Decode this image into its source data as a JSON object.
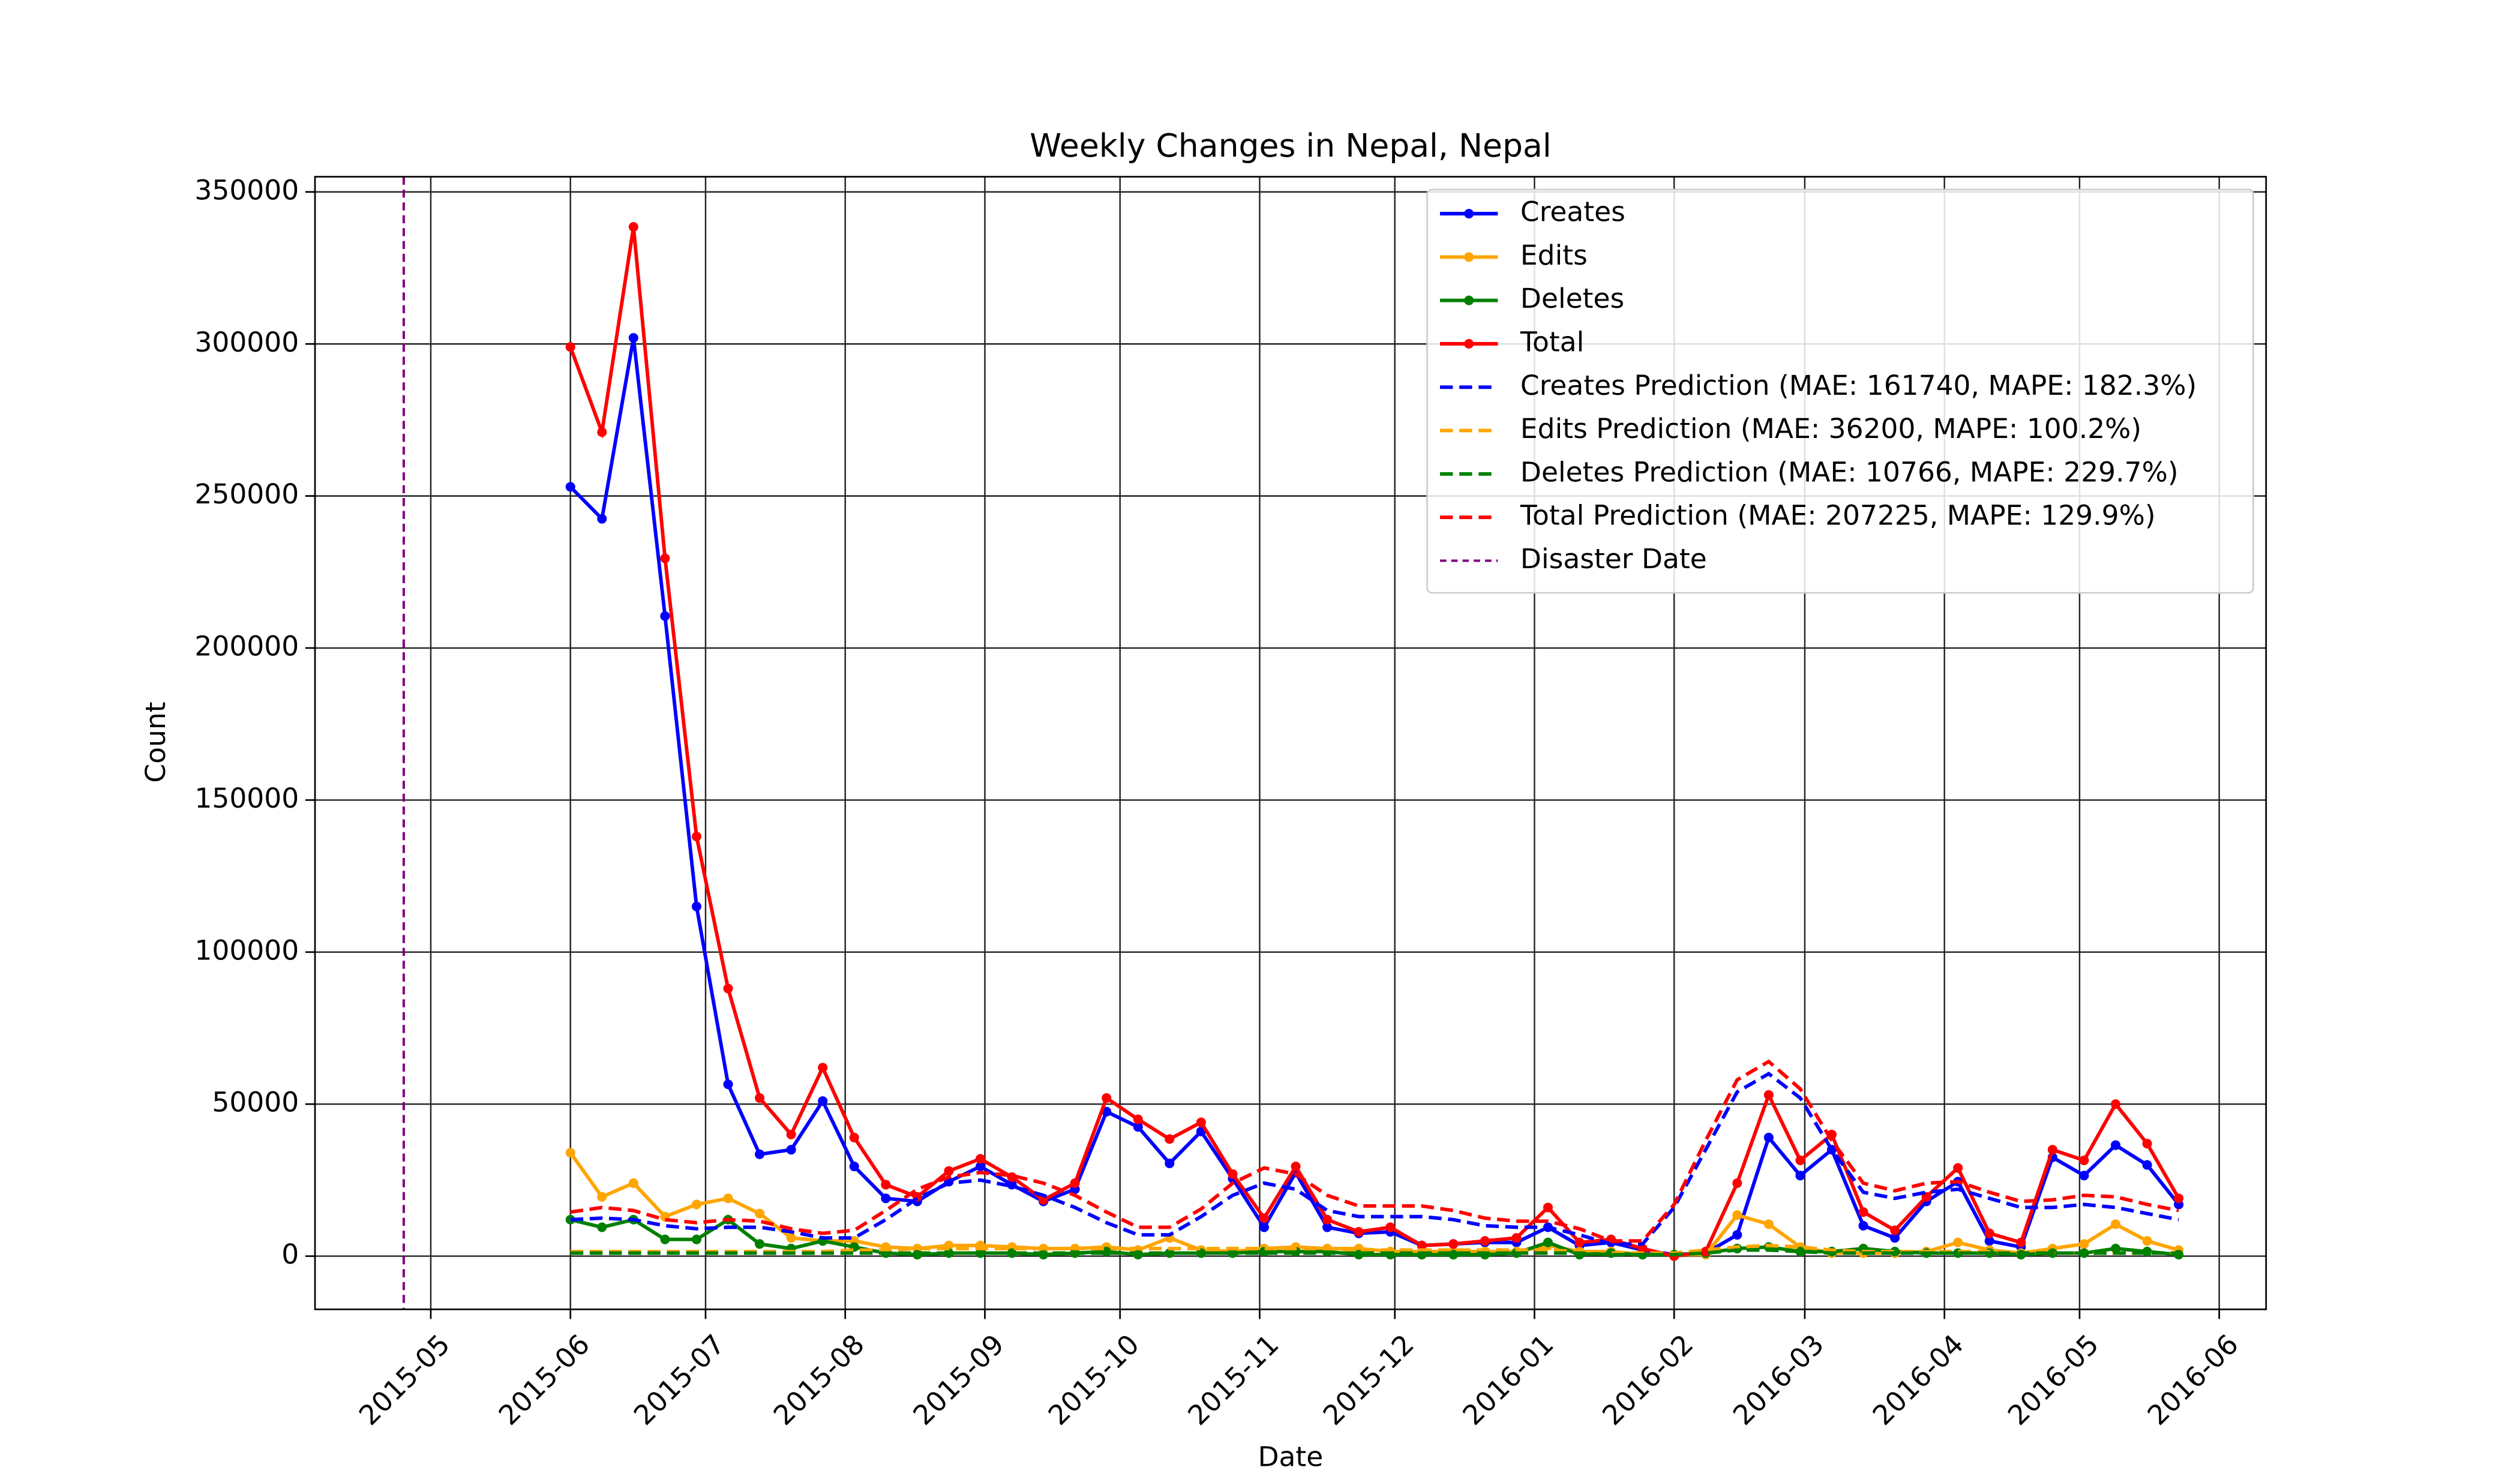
{
  "chart_data": {
    "type": "line",
    "title": "Weekly Changes in Nepal, Nepal",
    "xlabel": "Date",
    "ylabel": "Count",
    "x": [
      0,
      7,
      14,
      21,
      28,
      35,
      42,
      49,
      56,
      63,
      70,
      77,
      84,
      91,
      98,
      105,
      112,
      119,
      126,
      133,
      140,
      147,
      154,
      161,
      168,
      175,
      182,
      189,
      196,
      203,
      210,
      217,
      224,
      231,
      238,
      245,
      252,
      259,
      266,
      273,
      280,
      287,
      294,
      301,
      308,
      315,
      322,
      329,
      336,
      343,
      350,
      357
    ],
    "xlim": [
      -56.7,
      376.4
    ],
    "xticks": [
      {
        "value": -31,
        "label": "2015-05"
      },
      {
        "value": 0,
        "label": "2015-06"
      },
      {
        "value": 30,
        "label": "2015-07"
      },
      {
        "value": 61,
        "label": "2015-08"
      },
      {
        "value": 92,
        "label": "2015-09"
      },
      {
        "value": 122,
        "label": "2015-10"
      },
      {
        "value": 153,
        "label": "2015-11"
      },
      {
        "value": 183,
        "label": "2015-12"
      },
      {
        "value": 214,
        "label": "2016-01"
      },
      {
        "value": 245,
        "label": "2016-02"
      },
      {
        "value": 274,
        "label": "2016-03"
      },
      {
        "value": 305,
        "label": "2016-04"
      },
      {
        "value": 335,
        "label": "2016-05"
      },
      {
        "value": 366,
        "label": "2016-06"
      }
    ],
    "ylim": [
      -17500,
      355000
    ],
    "yticks": [
      0,
      50000,
      100000,
      150000,
      200000,
      250000,
      300000,
      350000
    ],
    "grid": true,
    "legend": "upper right",
    "series": [
      {
        "name": "Creates",
        "color": "blue",
        "linestyle": "solid",
        "marker": true,
        "values": [
          253000,
          242500,
          302000,
          210500,
          115000,
          56500,
          33500,
          35000,
          51000,
          29500,
          19000,
          18000,
          24500,
          29500,
          23500,
          18000,
          22000,
          47500,
          42500,
          30500,
          41000,
          25500,
          9500,
          27500,
          9500,
          7500,
          8000,
          3500,
          4000,
          4500,
          4500,
          9500,
          3500,
          4500,
          2000,
          500,
          1000,
          7000,
          39000,
          26500,
          35000,
          10000,
          6000,
          18000,
          24500,
          5000,
          3000,
          32500,
          26500,
          36500,
          30000,
          17000
        ]
      },
      {
        "name": "Edits",
        "color": "orange",
        "linestyle": "solid",
        "marker": true,
        "values": [
          34000,
          19500,
          24000,
          13000,
          17000,
          19000,
          14000,
          6000,
          5000,
          5000,
          3000,
          2500,
          3500,
          3500,
          3000,
          2500,
          2500,
          3000,
          2000,
          6000,
          2000,
          1500,
          2500,
          3000,
          2500,
          2500,
          1500,
          1500,
          1500,
          1500,
          1500,
          3500,
          1500,
          1500,
          500,
          500,
          500,
          13500,
          10500,
          3000,
          1000,
          1000,
          1000,
          1500,
          4500,
          2000,
          1000,
          2500,
          4000,
          10500,
          5000,
          2000
        ]
      },
      {
        "name": "Deletes",
        "color": "green",
        "linestyle": "solid",
        "marker": true,
        "values": [
          12000,
          9500,
          12000,
          5500,
          5500,
          12000,
          4000,
          2500,
          5000,
          3000,
          1000,
          500,
          1000,
          1000,
          1000,
          500,
          1000,
          1500,
          500,
          1000,
          1000,
          1000,
          1500,
          1500,
          1500,
          500,
          500,
          500,
          500,
          500,
          1000,
          4500,
          500,
          1000,
          500,
          500,
          1000,
          2500,
          3000,
          1500,
          1500,
          2500,
          1500,
          1000,
          1000,
          1000,
          500,
          1000,
          1000,
          2500,
          1500,
          500
        ]
      },
      {
        "name": "Total",
        "color": "red",
        "linestyle": "solid",
        "marker": true,
        "values": [
          299000,
          271000,
          338500,
          229500,
          138000,
          88000,
          52000,
          40000,
          62000,
          39000,
          23500,
          19500,
          28000,
          32000,
          26000,
          18500,
          24000,
          52000,
          45000,
          38500,
          44000,
          27000,
          12500,
          29500,
          12000,
          8000,
          9500,
          3500,
          4000,
          5000,
          6000,
          16000,
          4500,
          5500,
          2500,
          0,
          1500,
          24000,
          53000,
          31500,
          40000,
          14500,
          8500,
          19500,
          29000,
          7500,
          4500,
          35000,
          31500,
          50000,
          37000,
          19000
        ]
      },
      {
        "name": "Creates Prediction (MAE: 161740, MAPE: 182.3%)",
        "color": "blue",
        "linestyle": "dashed",
        "marker": false,
        "values": [
          12000,
          12500,
          12000,
          10000,
          9000,
          9500,
          9500,
          8000,
          6000,
          6000,
          12000,
          19000,
          24000,
          25000,
          23000,
          20000,
          16000,
          11000,
          7000,
          7000,
          13000,
          20000,
          24000,
          22000,
          15000,
          13000,
          13000,
          13000,
          12000,
          10000,
          9500,
          9500,
          7000,
          4000,
          4000,
          16000,
          35000,
          54000,
          60000,
          52000,
          35000,
          21000,
          19000,
          21000,
          22000,
          19000,
          16000,
          16000,
          17000,
          16000,
          14000,
          12000
        ]
      },
      {
        "name": "Edits Prediction (MAE: 36200, MAPE: 100.2%)",
        "color": "orange",
        "linestyle": "dashed",
        "marker": false,
        "values": [
          1500,
          1500,
          1500,
          1500,
          1500,
          1500,
          1500,
          1500,
          1500,
          2000,
          2000,
          2500,
          2500,
          2500,
          2500,
          2500,
          2500,
          2500,
          2500,
          2500,
          2500,
          2500,
          2500,
          2500,
          2500,
          2000,
          2000,
          2000,
          2000,
          2000,
          2000,
          2000,
          1500,
          1000,
          1000,
          1000,
          2000,
          3000,
          3500,
          3000,
          2000,
          1500,
          1500,
          1500,
          1500,
          1500,
          1000,
          1000,
          1000,
          1000,
          1000,
          1000
        ]
      },
      {
        "name": "Deletes Prediction (MAE: 10766, MAPE: 229.7%)",
        "color": "green",
        "linestyle": "dashed",
        "marker": false,
        "values": [
          1000,
          1000,
          1000,
          1000,
          1000,
          1000,
          1000,
          1000,
          1000,
          1000,
          1000,
          1000,
          1000,
          1000,
          1000,
          1000,
          1000,
          1000,
          1000,
          1000,
          1000,
          1000,
          1000,
          1000,
          1000,
          1000,
          1000,
          1000,
          1000,
          1000,
          1000,
          1000,
          1000,
          500,
          500,
          500,
          1000,
          2000,
          2000,
          1500,
          1000,
          1000,
          1000,
          1000,
          1000,
          1000,
          1000,
          1000,
          1000,
          1000,
          1000,
          1000
        ]
      },
      {
        "name": "Total Prediction (MAE: 207225, MAPE: 129.9%)",
        "color": "red",
        "linestyle": "dashed",
        "marker": false,
        "values": [
          14500,
          16000,
          15000,
          12000,
          11000,
          12000,
          11500,
          9000,
          7500,
          8500,
          15000,
          22000,
          26000,
          27500,
          26500,
          24000,
          20000,
          14500,
          9500,
          9500,
          15500,
          24000,
          29000,
          27000,
          20000,
          16500,
          16500,
          16500,
          15000,
          12500,
          11500,
          11500,
          9000,
          5000,
          5000,
          17000,
          38000,
          58000,
          64000,
          55000,
          38000,
          24000,
          21500,
          24000,
          24500,
          21000,
          18000,
          18500,
          20000,
          19500,
          17000,
          15000
        ]
      }
    ],
    "vline": {
      "name": "Disaster Date",
      "x": -37,
      "color": "purple",
      "linestyle": "dashed"
    }
  }
}
